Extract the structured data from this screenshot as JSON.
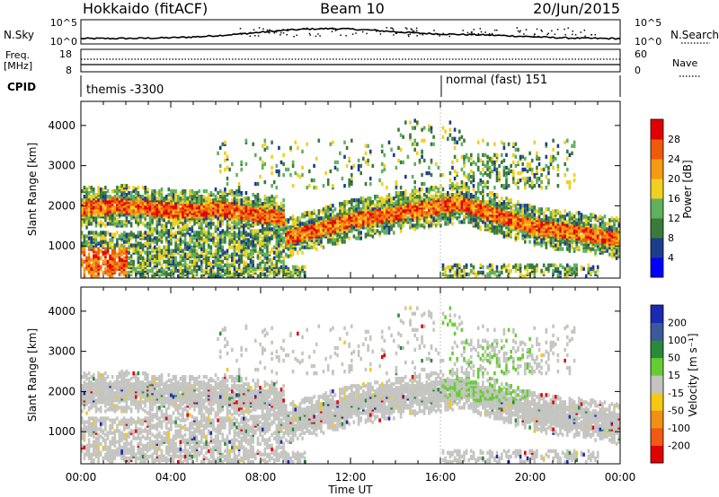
{
  "header": {
    "station": "Hokkaido (fitACF)",
    "beam": "Beam 10",
    "date": "20/Jun/2015"
  },
  "status_panels": {
    "nsky_label": "N.Sky",
    "nsky_ticks": [
      "10^5",
      "10^0"
    ],
    "nsearch_label": "N.Search",
    "freq_label": "Freq.",
    "freq_unit": "[MHz]",
    "freq_ticks": [
      "18",
      "8"
    ],
    "nave_label": "Nave",
    "nave_ticks": [
      "60",
      "0"
    ],
    "cpid_label": "CPID",
    "cpid_segments": [
      "themis -3300",
      "normal (fast) 151"
    ]
  },
  "colors": {
    "power": [
      "#0000ff",
      "#1e3c8c",
      "#3a7a3a",
      "#5fb05f",
      "#f0d020",
      "#f59a14",
      "#f05a0a",
      "#e10000"
    ],
    "velocity": [
      "#1a2ab4",
      "#3a5a9a",
      "#2a8a3a",
      "#66cc33",
      "#c4c4c0",
      "#f5c814",
      "#f09014",
      "#f05a14",
      "#e00000"
    ]
  },
  "chart_data": [
    {
      "type": "heatmap",
      "name": "power",
      "ylabel": "Slant Range [km]",
      "ylim": [
        200,
        4600
      ],
      "yticks": [
        "1000",
        "2000",
        "3000",
        "4000"
      ],
      "xlabel": "Time UT",
      "xticks": [
        "00:00",
        "04:00",
        "08:00",
        "12:00",
        "16:00",
        "20:00",
        "00:00"
      ],
      "xlim_hours": [
        0,
        24
      ],
      "colorbar_label": "Power [dB]",
      "colorbar_ticks": [
        "4",
        "8",
        "12",
        "16",
        "20",
        "24",
        "28"
      ]
    },
    {
      "type": "heatmap",
      "name": "velocity",
      "ylabel": "Slant Range [km]",
      "ylim": [
        200,
        4600
      ],
      "yticks": [
        "1000",
        "2000",
        "3000",
        "4000"
      ],
      "xlabel": "Time UT",
      "xticks": [
        "00:00",
        "04:00",
        "08:00",
        "12:00",
        "16:00",
        "20:00",
        "00:00"
      ],
      "xlim_hours": [
        0,
        24
      ],
      "colorbar_label": "Velocity [m s⁻¹]",
      "colorbar_ticks": [
        "200",
        "100",
        "50",
        "15",
        "-15",
        "-50",
        "-100",
        "-200"
      ]
    }
  ]
}
